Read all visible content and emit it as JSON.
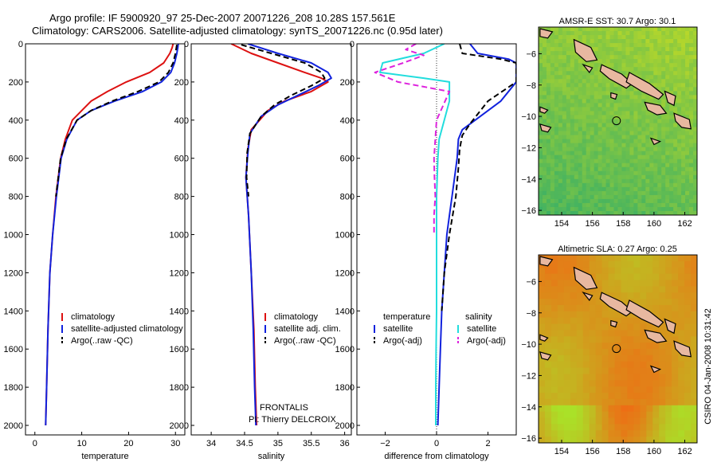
{
  "header": {
    "title_line1": "Argo profile: IF 5900920_97 25-Dec-2007 20071226_208 10.28S 157.561E",
    "title_line2": "Climatology: CARS2006. Satellite-adjusted climatology: synTS_20071226.nc (0.95d later)"
  },
  "footer": {
    "frontalis_label": "FRONTALIS",
    "pi_label": "PI: Thierry DELCROIX",
    "credit": "CSIRO 04-Jan-2008 10:31:42"
  },
  "colors": {
    "climatology": "#dd1111",
    "satellite": "#1122dd",
    "argo": "#000000",
    "salinity_satellite": "#22dddd",
    "salinity_argo": "#dd22dd",
    "map_land": "#e8b8a0"
  },
  "chart_data": [
    {
      "id": "temperature",
      "type": "line",
      "xlabel": "temperature",
      "xlim": [
        -2,
        32
      ],
      "ylim": [
        0,
        2050
      ],
      "y_reversed": true,
      "xticks": [
        0,
        10,
        20,
        30
      ],
      "yticks": [
        0,
        200,
        400,
        600,
        800,
        1000,
        1200,
        1400,
        1600,
        1800,
        2000
      ],
      "legend": [
        {
          "label": "climatology",
          "color": "#dd1111",
          "dash": false
        },
        {
          "label": "satellite-adjusted climatology",
          "color": "#1122dd",
          "dash": false
        },
        {
          "label": "Argo(..raw -QC)",
          "color": "#000000",
          "dash": true
        }
      ],
      "series": [
        {
          "name": "climatology",
          "color": "#dd1111",
          "dash": false,
          "x": [
            29.5,
            29.3,
            28.8,
            27.5,
            24.5,
            19.5,
            15.5,
            12.0,
            10.0,
            8.0,
            6.5,
            5.5,
            4.5,
            3.8,
            3.2,
            2.8,
            2.5,
            2.3
          ],
          "y": [
            0,
            20,
            50,
            100,
            150,
            200,
            250,
            300,
            350,
            400,
            500,
            600,
            800,
            1000,
            1200,
            1500,
            1800,
            2000
          ]
        },
        {
          "name": "satellite-adjusted climatology",
          "color": "#1122dd",
          "dash": false,
          "x": [
            30.6,
            30.5,
            30.3,
            29.8,
            29.0,
            27.0,
            23.0,
            17.0,
            12.0,
            9.0,
            6.8,
            5.6,
            4.6,
            3.8,
            3.2,
            2.8,
            2.5,
            2.3
          ],
          "y": [
            0,
            20,
            50,
            100,
            150,
            200,
            250,
            300,
            350,
            400,
            500,
            600,
            800,
            1000,
            1200,
            1500,
            1800,
            2000
          ]
        },
        {
          "name": "Argo(..raw -QC)",
          "color": "#000000",
          "dash": true,
          "x": [
            30.3,
            30.2,
            30.0,
            29.5,
            28.5,
            26.5,
            22.0,
            16.5,
            12.0,
            9.0,
            6.7,
            5.5,
            4.5
          ],
          "y": [
            5,
            20,
            50,
            100,
            150,
            200,
            250,
            300,
            350,
            400,
            500,
            600,
            800
          ]
        }
      ]
    },
    {
      "id": "salinity",
      "type": "line",
      "xlabel": "salinity",
      "xlim": [
        33.7,
        36.1
      ],
      "ylim": [
        0,
        2050
      ],
      "y_reversed": true,
      "xticks": [
        34,
        34.5,
        35,
        35.5,
        36
      ],
      "yticks": [
        0,
        200,
        400,
        600,
        800,
        1000,
        1200,
        1400,
        1600,
        1800,
        2000
      ],
      "legend": [
        {
          "label": "climatology",
          "color": "#dd1111",
          "dash": false
        },
        {
          "label": "satellite adj. clim.",
          "color": "#1122dd",
          "dash": false
        },
        {
          "label": "Argo(..raw -QC)",
          "color": "#000000",
          "dash": true
        }
      ],
      "series": [
        {
          "name": "climatology",
          "color": "#dd1111",
          "dash": false,
          "x": [
            34.3,
            34.6,
            35.0,
            35.4,
            35.65,
            35.75,
            35.5,
            35.1,
            34.85,
            34.6,
            34.55,
            34.52,
            34.56,
            34.6,
            34.64,
            34.66,
            34.68
          ],
          "y": [
            0,
            50,
            100,
            150,
            180,
            200,
            250,
            300,
            350,
            450,
            550,
            700,
            900,
            1200,
            1500,
            1800,
            2000
          ]
        },
        {
          "name": "satellite adj. clim.",
          "color": "#1122dd",
          "dash": false,
          "x": [
            34.55,
            35.0,
            35.5,
            35.75,
            35.8,
            35.6,
            35.3,
            35.0,
            34.75,
            34.58,
            34.55,
            34.52,
            34.56,
            34.6,
            34.63,
            34.65,
            34.67
          ],
          "y": [
            0,
            50,
            100,
            150,
            180,
            220,
            270,
            320,
            380,
            470,
            570,
            700,
            900,
            1200,
            1500,
            1800,
            2000
          ]
        },
        {
          "name": "Argo(..raw -QC)",
          "color": "#000000",
          "dash": true,
          "x": [
            34.45,
            34.9,
            35.4,
            35.65,
            35.7,
            35.5,
            35.2,
            34.95,
            34.75,
            34.58,
            34.54,
            34.53,
            34.56
          ],
          "y": [
            5,
            50,
            100,
            150,
            180,
            220,
            270,
            320,
            380,
            470,
            570,
            700,
            800
          ]
        }
      ]
    },
    {
      "id": "difference",
      "type": "line",
      "xlabel": "difference from climatology",
      "xlim": [
        -3.1,
        3.1
      ],
      "ylim": [
        0,
        2050
      ],
      "y_reversed": true,
      "xticks": [
        -2,
        0,
        2
      ],
      "yticks": [
        0,
        200,
        400,
        600,
        800,
        1000,
        1200,
        1400,
        1600,
        1800,
        2000
      ],
      "legend_headers": [
        "temperature",
        "salinity"
      ],
      "legend": [
        {
          "label": "satellite",
          "color": "#1122dd",
          "dash": false
        },
        {
          "label": "Argo(-adj)",
          "color": "#000000",
          "dash": true
        },
        {
          "label": "satellite",
          "color": "#22dddd",
          "dash": false
        },
        {
          "label": "Argo(-adj)",
          "color": "#dd22dd",
          "dash": true
        }
      ],
      "series": [
        {
          "name": "temperature satellite",
          "color": "#1122dd",
          "dash": false,
          "x": [
            1.3,
            1.6,
            2.8,
            3.1,
            3.1,
            2.5,
            1.0,
            0.85,
            0.8,
            0.7,
            0.6,
            0.5,
            0.4,
            0.3,
            0.2,
            0.15,
            0.1,
            0.05
          ],
          "y": [
            0,
            50,
            80,
            100,
            200,
            300,
            450,
            500,
            600,
            700,
            800,
            900,
            1000,
            1200,
            1400,
            1600,
            1800,
            2000
          ]
        },
        {
          "name": "temperature Argo(-adj)",
          "color": "#000000",
          "dash": true,
          "x": [
            0.9,
            1.0,
            2.5,
            3.1,
            3.1,
            2.0,
            1.3,
            1.0,
            0.9,
            0.85,
            0.75,
            0.5,
            0.3,
            0.2
          ],
          "y": [
            0,
            50,
            80,
            100,
            200,
            300,
            420,
            480,
            550,
            650,
            800,
            1000,
            1200,
            1400
          ]
        },
        {
          "name": "salinity satellite",
          "color": "#22dddd",
          "dash": false,
          "x": [
            0.3,
            -0.5,
            -2.1,
            -2.2,
            -0.5,
            0.5,
            0.5,
            0.3,
            0.1,
            0.05,
            0.0,
            0.0,
            0.0,
            0.0,
            -0.02,
            -0.03,
            -0.03,
            -0.03
          ],
          "y": [
            0,
            50,
            100,
            150,
            180,
            200,
            300,
            400,
            500,
            600,
            800,
            1000,
            1200,
            1400,
            1600,
            1800,
            1950,
            2000
          ]
        },
        {
          "name": "salinity Argo(-adj)",
          "color": "#dd22dd",
          "dash": true,
          "x": [
            -0.8,
            -1.2,
            -0.5,
            -1.3,
            -2.4,
            -1.5,
            0.5,
            0.0,
            -0.05,
            -0.1,
            -0.08,
            -0.05,
            -0.1,
            -0.1
          ],
          "y": [
            0,
            30,
            60,
            100,
            150,
            200,
            250,
            400,
            500,
            600,
            700,
            800,
            900,
            1000
          ]
        }
      ]
    },
    {
      "id": "sst_map",
      "type": "heatmap",
      "title": "AMSR-E SST: 30.7 Argo: 30.1",
      "xlim": [
        152.5,
        162.8
      ],
      "ylim": [
        -16.3,
        -4.3
      ],
      "xticks": [
        154,
        156,
        158,
        160,
        162
      ],
      "yticks": [
        -6,
        -8,
        -10,
        -12,
        -14,
        -16
      ],
      "argo_position": {
        "lon": 157.561,
        "lat": -10.28
      }
    },
    {
      "id": "sla_map",
      "type": "heatmap",
      "title": "Altimetric SLA: 0.27 Argo: 0.25",
      "xlim": [
        152.5,
        162.8
      ],
      "ylim": [
        -16.3,
        -4.3
      ],
      "xticks": [
        154,
        156,
        158,
        160,
        162
      ],
      "yticks": [
        -6,
        -8,
        -10,
        -12,
        -14,
        -16
      ],
      "argo_position": {
        "lon": 157.561,
        "lat": -10.28
      }
    }
  ]
}
